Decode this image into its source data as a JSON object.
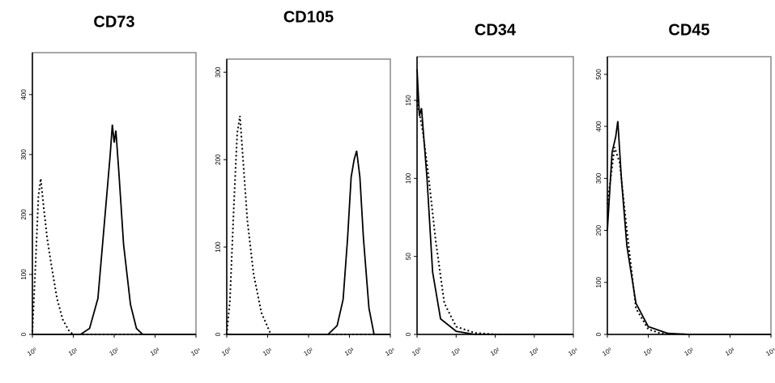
{
  "chart_data": [
    {
      "type": "line",
      "title": "CD73",
      "x_scale": "log",
      "xlim": [
        1,
        10000
      ],
      "xticks": [
        {
          "value": 1,
          "label": "10⁰"
        },
        {
          "value": 10,
          "label": "10¹"
        },
        {
          "value": 100,
          "label": "10²"
        },
        {
          "value": 1000,
          "label": "10³"
        },
        {
          "value": 10000,
          "label": "10⁴"
        }
      ],
      "ylim": [
        0,
        470
      ],
      "yticks": [
        0,
        100,
        200,
        300,
        400
      ],
      "series": [
        {
          "color": "#000000",
          "line_style": "dotted",
          "x": [
            1,
            1.2,
            1.4,
            1.6,
            1.9,
            2.3,
            3,
            4,
            5.5,
            8,
            10,
            10000
          ],
          "values": [
            5,
            120,
            230,
            260,
            210,
            160,
            110,
            60,
            25,
            5,
            0,
            0
          ]
        },
        {
          "color": "#000000",
          "line_style": "solid",
          "x": [
            1,
            15,
            25,
            40,
            60,
            80,
            90,
            100,
            110,
            130,
            170,
            250,
            350,
            500,
            10000
          ],
          "values": [
            0,
            0,
            10,
            60,
            200,
            300,
            350,
            320,
            340,
            270,
            150,
            50,
            10,
            0,
            0
          ]
        }
      ]
    },
    {
      "type": "line",
      "title": "CD105",
      "x_scale": "log",
      "xlim": [
        1,
        10000
      ],
      "xticks": [
        {
          "value": 1,
          "label": "10⁰"
        },
        {
          "value": 10,
          "label": "10¹"
        },
        {
          "value": 100,
          "label": "10²"
        },
        {
          "value": 1000,
          "label": "10³"
        },
        {
          "value": 10000,
          "label": "10⁴"
        }
      ],
      "ylim": [
        0,
        315
      ],
      "yticks": [
        0,
        100,
        200,
        300
      ],
      "series": [
        {
          "color": "#000000",
          "line_style": "dotted",
          "x": [
            1,
            1.2,
            1.5,
            1.8,
            2.1,
            2.5,
            3.2,
            4.5,
            7,
            12,
            10000
          ],
          "values": [
            0,
            40,
            150,
            230,
            250,
            200,
            130,
            70,
            25,
            0,
            0
          ]
        },
        {
          "color": "#000000",
          "line_style": "solid",
          "x": [
            1,
            300,
            500,
            700,
            900,
            1100,
            1300,
            1500,
            1800,
            2200,
            3000,
            4000,
            10000
          ],
          "values": [
            0,
            0,
            10,
            40,
            110,
            180,
            200,
            210,
            180,
            110,
            30,
            0,
            0
          ]
        }
      ]
    },
    {
      "type": "line",
      "title": "CD34",
      "x_scale": "log",
      "xlim": [
        1,
        10000
      ],
      "xticks": [
        {
          "value": 1,
          "label": "10⁰"
        },
        {
          "value": 10,
          "label": "10¹"
        },
        {
          "value": 100,
          "label": "10²"
        },
        {
          "value": 1000,
          "label": "10³"
        },
        {
          "value": 10000,
          "label": "10⁴"
        }
      ],
      "ylim": [
        0,
        178
      ],
      "yticks": [
        0,
        50,
        100,
        150
      ],
      "series": [
        {
          "color": "#000000",
          "line_style": "dotted",
          "x": [
            1,
            1.4,
            2,
            3,
            5,
            10,
            30,
            100,
            10000
          ],
          "values": [
            150,
            130,
            100,
            60,
            20,
            5,
            1,
            0,
            0
          ]
        },
        {
          "color": "#000000",
          "line_style": "solid",
          "x": [
            1,
            1.15,
            1.3,
            1.5,
            1.8,
            2.5,
            4,
            10,
            30,
            10000
          ],
          "values": [
            170,
            140,
            145,
            125,
            100,
            40,
            10,
            2,
            0,
            0
          ]
        }
      ]
    },
    {
      "type": "line",
      "title": "CD45",
      "x_scale": "log",
      "xlim": [
        1,
        10000
      ],
      "xticks": [
        {
          "value": 1,
          "label": "10⁰"
        },
        {
          "value": 10,
          "label": "10¹"
        },
        {
          "value": 100,
          "label": "10²"
        },
        {
          "value": 1000,
          "label": "10³"
        },
        {
          "value": 10000,
          "label": "10⁴"
        }
      ],
      "ylim": [
        0,
        534
      ],
      "yticks": [
        0,
        100,
        200,
        300,
        400,
        500
      ],
      "series": [
        {
          "color": "#000000",
          "line_style": "dotted",
          "x": [
            1,
            1.5,
            2,
            3,
            5,
            10,
            20,
            100,
            10000
          ],
          "values": [
            250,
            360,
            330,
            200,
            50,
            10,
            2,
            0,
            0
          ]
        },
        {
          "color": "#000000",
          "line_style": "solid",
          "x": [
            1,
            1.3,
            1.6,
            1.8,
            2.2,
            3,
            5,
            10,
            30,
            100,
            10000
          ],
          "values": [
            200,
            350,
            380,
            410,
            300,
            170,
            60,
            15,
            2,
            0,
            0
          ]
        }
      ]
    }
  ]
}
